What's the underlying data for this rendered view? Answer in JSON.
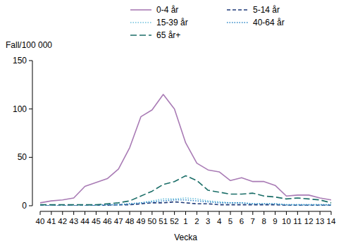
{
  "chart_data": {
    "type": "line",
    "x_label": "Vecka",
    "y_label": "Fall/100 000",
    "categories": [
      "40",
      "41",
      "42",
      "43",
      "44",
      "45",
      "46",
      "47",
      "48",
      "49",
      "50",
      "51",
      "52",
      "1",
      "2",
      "3",
      "4",
      "5",
      "6",
      "7",
      "8",
      "9",
      "10",
      "11",
      "12",
      "13",
      "14"
    ],
    "series": [
      {
        "name": "0-4 år",
        "color": "#a97bb5",
        "line_style": "solid",
        "values": [
          3,
          5,
          6,
          8,
          20,
          24,
          28,
          38,
          60,
          92,
          99,
          115,
          100,
          65,
          44,
          37,
          35,
          26,
          29,
          25,
          25,
          21,
          10,
          11,
          11,
          8,
          6
        ]
      },
      {
        "name": "5-14 år",
        "color": "#1f3a78",
        "line_style": "dashed",
        "values": [
          0,
          0,
          0,
          0,
          0,
          0,
          0.5,
          1,
          1,
          2,
          3,
          3,
          4,
          3,
          2,
          2,
          1,
          1,
          1,
          1,
          1,
          1,
          0.5,
          0.5,
          0.5,
          0.5,
          0.5
        ]
      },
      {
        "name": "15-39 år",
        "color": "#6cc0dc",
        "line_style": "dotted",
        "values": [
          0,
          0,
          0,
          0,
          0,
          0.5,
          1,
          1,
          2,
          3,
          5,
          7,
          7,
          8,
          7,
          5,
          4,
          3,
          3,
          2,
          2,
          2,
          1,
          1,
          1,
          1,
          1
        ]
      },
      {
        "name": "40-64 år",
        "color": "#2b86c6",
        "line_style": "dotted",
        "values": [
          0,
          0,
          0,
          0,
          0,
          0.5,
          1,
          1,
          2,
          3,
          4,
          5,
          6,
          6,
          5,
          4,
          3,
          3,
          3,
          2,
          2,
          2,
          1,
          1,
          1,
          1,
          1
        ]
      },
      {
        "name": "65 år+",
        "color": "#1b6e68",
        "line_style": "longdash",
        "values": [
          1,
          1,
          1,
          1,
          1,
          1,
          2,
          3,
          5,
          10,
          15,
          22,
          25,
          31,
          26,
          16,
          14,
          12,
          12,
          13,
          10,
          9,
          7,
          8,
          7,
          6,
          3
        ]
      }
    ],
    "ylim": [
      0,
      150
    ],
    "yticks": [
      0,
      50,
      100,
      150
    ],
    "grid": false,
    "legend": "top"
  }
}
